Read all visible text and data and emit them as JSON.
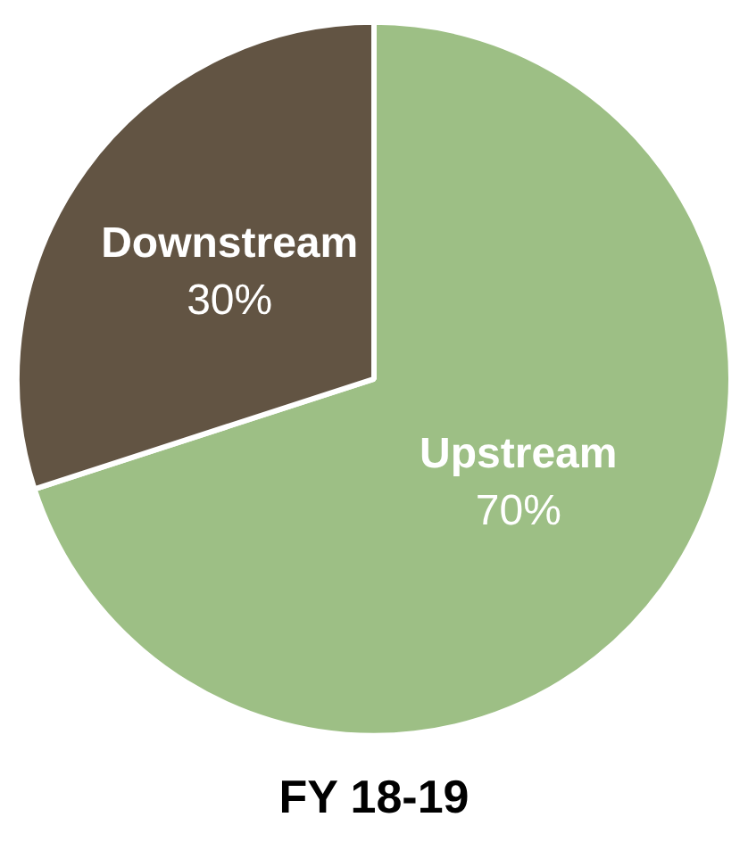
{
  "chart_data": {
    "type": "pie",
    "title": "FY 18-19",
    "categories": [
      "Upstream",
      "Downstream"
    ],
    "values": [
      70,
      30
    ],
    "value_labels": [
      "70%",
      "30%"
    ],
    "colors": [
      "#9dbf85",
      "#625443"
    ],
    "legend": false
  }
}
